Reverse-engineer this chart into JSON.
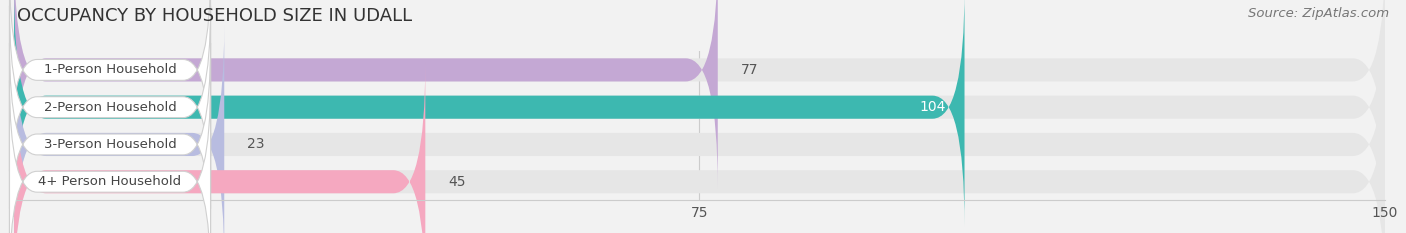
{
  "title": "OCCUPANCY BY HOUSEHOLD SIZE IN UDALL",
  "source": "Source: ZipAtlas.com",
  "categories": [
    "1-Person Household",
    "2-Person Household",
    "3-Person Household",
    "4+ Person Household"
  ],
  "values": [
    77,
    104,
    23,
    45
  ],
  "bar_colors": [
    "#c4a8d4",
    "#3db8b0",
    "#b8bce0",
    "#f5a8c0"
  ],
  "xlim": [
    0,
    150
  ],
  "xticks": [
    0,
    75,
    150
  ],
  "background_color": "#f2f2f2",
  "row_bg_color": "#e6e6e6",
  "title_fontsize": 13,
  "source_fontsize": 9.5,
  "tick_fontsize": 10,
  "bar_height": 0.62
}
